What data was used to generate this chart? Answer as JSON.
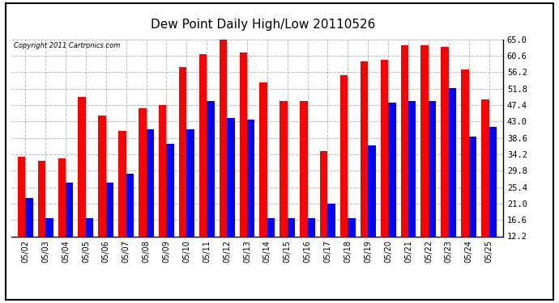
{
  "title": "Dew Point Daily High/Low 20110526",
  "copyright": "Copyright 2011 Cartronics.com",
  "dates": [
    "05/02",
    "05/03",
    "05/04",
    "05/05",
    "05/06",
    "05/07",
    "05/08",
    "05/09",
    "05/10",
    "05/11",
    "05/12",
    "05/13",
    "05/14",
    "05/15",
    "05/16",
    "05/17",
    "05/18",
    "05/19",
    "05/20",
    "05/21",
    "05/22",
    "05/23",
    "05/24",
    "05/25"
  ],
  "highs": [
    33.5,
    32.5,
    33.0,
    49.5,
    44.5,
    40.5,
    46.5,
    47.5,
    57.5,
    61.0,
    65.0,
    61.5,
    53.5,
    48.5,
    48.5,
    35.0,
    55.5,
    59.0,
    59.5,
    63.5,
    63.5,
    63.0,
    57.0,
    49.0
  ],
  "lows": [
    22.5,
    17.0,
    26.5,
    17.0,
    26.5,
    29.0,
    41.0,
    37.0,
    41.0,
    48.5,
    44.0,
    43.5,
    17.0,
    17.0,
    17.0,
    21.0,
    17.0,
    36.5,
    48.0,
    48.5,
    48.5,
    52.0,
    39.0,
    41.5
  ],
  "high_color": "#ff0000",
  "low_color": "#0000ff",
  "background_color": "#ffffff",
  "grid_color": "#aaaaaa",
  "yticks": [
    12.2,
    16.6,
    21.0,
    25.4,
    29.8,
    34.2,
    38.6,
    43.0,
    47.4,
    51.8,
    56.2,
    60.6,
    65.0
  ],
  "ymin": 12.2,
  "ymax": 65.0,
  "bar_width": 0.38,
  "figwidth": 6.9,
  "figheight": 3.75,
  "dpi": 100
}
